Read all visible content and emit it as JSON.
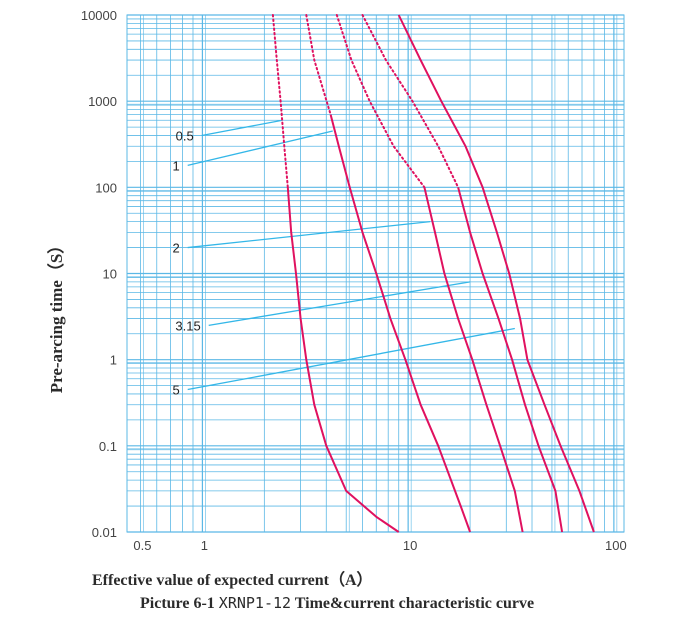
{
  "chart_data": {
    "type": "line",
    "title": "",
    "xlabel": "Effective value of expected current（A）",
    "ylabel": "Pre-arcing time（S）",
    "xscale": "log",
    "yscale": "log",
    "xlim": [
      0.43,
      112
    ],
    "ylim": [
      0.01,
      10000
    ],
    "xticks": [
      "0.5",
      "1",
      "10",
      "100"
    ],
    "yticks": [
      "10000",
      "1000",
      "100",
      "10",
      "1",
      "0.1",
      "0.01"
    ],
    "grid": true,
    "colors": {
      "curve": "#e0115f",
      "grid": "#5bb8e6",
      "callout": "#34b7e8"
    },
    "series": [
      {
        "name": "0.5",
        "points": [
          [
            2.2,
            10000
          ],
          [
            2.3,
            3000
          ],
          [
            2.4,
            1000
          ],
          [
            2.5,
            300
          ],
          [
            2.6,
            100
          ],
          [
            2.7,
            30
          ],
          [
            2.85,
            10
          ],
          [
            3.0,
            3
          ],
          [
            3.2,
            1
          ],
          [
            3.5,
            0.3
          ],
          [
            4.0,
            0.1
          ],
          [
            5.0,
            0.03
          ],
          [
            7.0,
            0.015
          ],
          [
            9.0,
            0.01
          ]
        ],
        "dotted_above": 100
      },
      {
        "name": "1",
        "points": [
          [
            3.2,
            10000
          ],
          [
            3.5,
            3000
          ],
          [
            4.2,
            700
          ],
          [
            4.6,
            300
          ],
          [
            5.2,
            100
          ],
          [
            6.0,
            30
          ],
          [
            7.0,
            10
          ],
          [
            8.2,
            3
          ],
          [
            9.7,
            1
          ],
          [
            11.5,
            0.3
          ],
          [
            14.0,
            0.1
          ],
          [
            18.0,
            0.02
          ],
          [
            20.0,
            0.01
          ]
        ],
        "dotted_above": 700
      },
      {
        "name": "2",
        "points": [
          [
            4.5,
            10000
          ],
          [
            5.3,
            3000
          ],
          [
            6.5,
            1000
          ],
          [
            8.5,
            300
          ],
          [
            12.0,
            100
          ],
          [
            13.5,
            30
          ],
          [
            15.0,
            10
          ],
          [
            17.5,
            3
          ],
          [
            20.5,
            1
          ],
          [
            24.0,
            0.3
          ],
          [
            28.0,
            0.1
          ],
          [
            33.0,
            0.03
          ],
          [
            36.0,
            0.01
          ]
        ],
        "dotted_above": 100
      },
      {
        "name": "3.15",
        "points": [
          [
            6.0,
            10000
          ],
          [
            7.8,
            3000
          ],
          [
            10.5,
            1000
          ],
          [
            14.0,
            300
          ],
          [
            17.5,
            100
          ],
          [
            20.0,
            30
          ],
          [
            23.0,
            10
          ],
          [
            27.5,
            3
          ],
          [
            32.0,
            1
          ],
          [
            37.0,
            0.3
          ],
          [
            43.0,
            0.1
          ],
          [
            52.0,
            0.03
          ],
          [
            56.0,
            0.01
          ]
        ],
        "dotted_above": 100
      },
      {
        "name": "5",
        "points": [
          [
            9.0,
            10000
          ],
          [
            11.5,
            3000
          ],
          [
            14.5,
            1000
          ],
          [
            19.0,
            300
          ],
          [
            23.0,
            100
          ],
          [
            27.0,
            30
          ],
          [
            31.0,
            10
          ],
          [
            35.0,
            3
          ],
          [
            38.0,
            1
          ],
          [
            46.0,
            0.3
          ],
          [
            55.0,
            0.1
          ],
          [
            68.0,
            0.03
          ],
          [
            80.0,
            0.01
          ]
        ],
        "dotted_above": 0
      }
    ],
    "callouts": [
      {
        "label": "0.5",
        "label_at": [
          0.62,
          400
        ],
        "line_to": [
          2.45,
          600
        ]
      },
      {
        "label": "1",
        "label_at": [
          0.62,
          180
        ],
        "line_to": [
          4.3,
          450
        ]
      },
      {
        "label": "2",
        "label_at": [
          0.62,
          20
        ],
        "line_to": [
          12.8,
          40
        ]
      },
      {
        "label": "3.15",
        "label_at": [
          0.62,
          2.5
        ],
        "line_to": [
          20.0,
          8
        ]
      },
      {
        "label": "5",
        "label_at": [
          0.62,
          0.45
        ],
        "line_to": [
          33.0,
          2.3
        ]
      }
    ]
  },
  "caption": {
    "prefix": "Picture 6-1",
    "model": "XRNP1-12",
    "text": "Time&current characteristic curve"
  }
}
